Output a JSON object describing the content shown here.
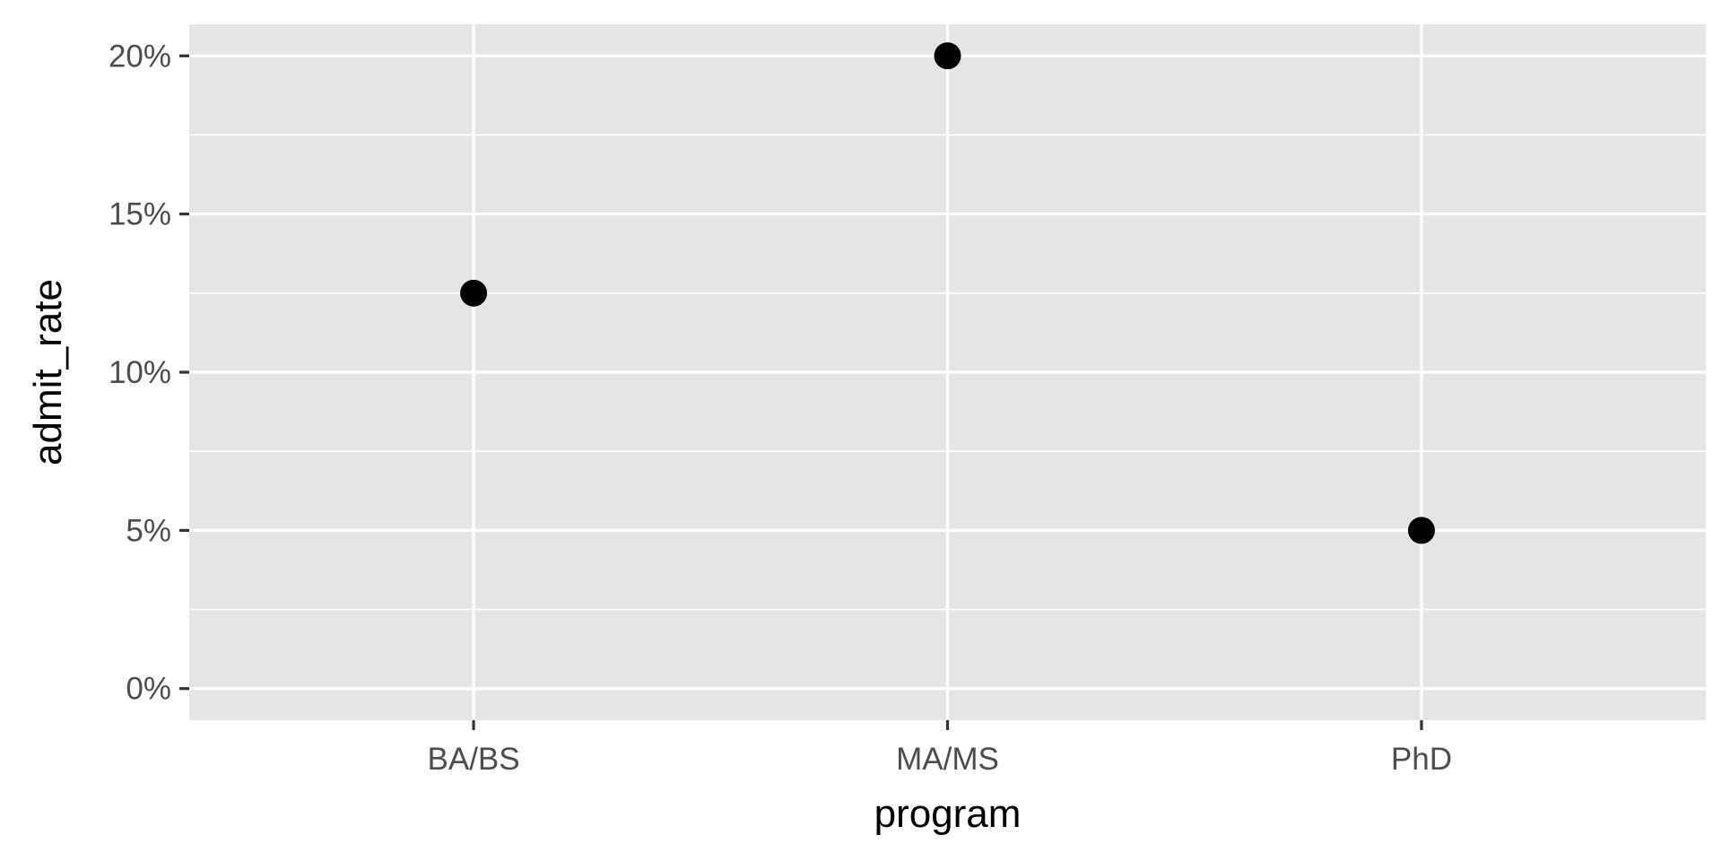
{
  "chart_data": {
    "type": "scatter",
    "categories": [
      "BA/BS",
      "MA/MS",
      "PhD"
    ],
    "series": [
      {
        "values": [
          12.5,
          20,
          5
        ]
      }
    ],
    "xlabel": "program",
    "ylabel": "admit_rate",
    "ylim": [
      -1,
      21
    ],
    "yticks": [
      0,
      5,
      10,
      15,
      20
    ],
    "ytick_labels": [
      "0%",
      "5%",
      "10%",
      "15%",
      "20%"
    ],
    "grid": true,
    "point_color": "#000000",
    "panel_background": "#e5e5e5",
    "grid_color": "#ffffff"
  }
}
